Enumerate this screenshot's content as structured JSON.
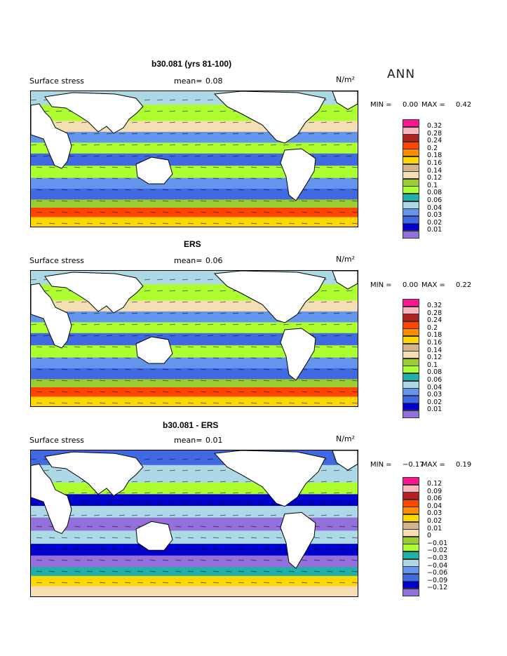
{
  "season": "ANN",
  "panels": [
    {
      "title": "b30.081 (yrs 81-100)",
      "field": "Surface stress",
      "mean_label": "mean=",
      "mean": "0.08",
      "units": "N/m²",
      "min_label": "MIN =",
      "min": "0.00",
      "max_label": "MAX =",
      "max": "0.42",
      "levels": [
        "0.32",
        "0.28",
        "0.24",
        "0.2",
        "0.18",
        "0.16",
        "0.14",
        "0.12",
        "0.1",
        "0.08",
        "0.06",
        "0.04",
        "0.03",
        "0.02",
        "0.01"
      ]
    },
    {
      "title": "ERS",
      "field": "Surface stress",
      "mean_label": "mean=",
      "mean": "0.06",
      "units": "N/m²",
      "min_label": "MIN =",
      "min": "0.00",
      "max_label": "MAX =",
      "max": "0.22",
      "levels": [
        "0.32",
        "0.28",
        "0.24",
        "0.2",
        "0.18",
        "0.16",
        "0.14",
        "0.12",
        "0.1",
        "0.08",
        "0.06",
        "0.04",
        "0.03",
        "0.02",
        "0.01"
      ]
    },
    {
      "title": "b30.081 - ERS",
      "field": "Surface stress",
      "mean_label": "mean=",
      "mean": "0.01",
      "units": "N/m²",
      "min_label": "MIN =",
      "min": "−0.17",
      "max_label": "MAX =",
      "max": "0.19",
      "levels": [
        "0.12",
        "0.09",
        "0.06",
        "0.04",
        "0.03",
        "0.02",
        "0.01",
        "0",
        "−0.01",
        "−0.02",
        "−0.03",
        "−0.04",
        "−0.06",
        "−0.09",
        "−0.12"
      ]
    }
  ],
  "colors": {
    "palette": [
      "#ff1493",
      "#ffb6c1",
      "#b22222",
      "#ff4500",
      "#ff8c00",
      "#ffd700",
      "#d2b48c",
      "#f5deb3",
      "#9acd32",
      "#adff2f",
      "#20b2aa",
      "#add8e6",
      "#6495ed",
      "#4169e1",
      "#0000cd",
      "#9370db"
    ],
    "land": "#ffffff",
    "coast": "#000000"
  }
}
